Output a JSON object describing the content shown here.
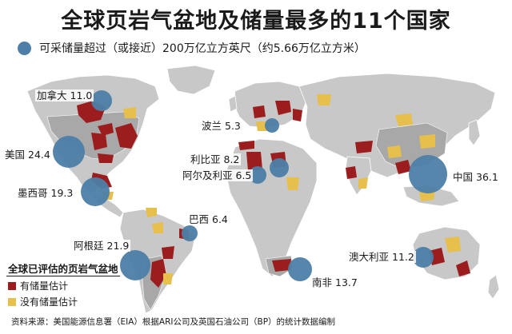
{
  "title": "全球页岩气盆地及储量最多的11个国家",
  "subtitle": "可采储量超过（或接近）200万亿立方英尺（约5.66万亿立方米）",
  "colors": {
    "bubble": "#4d7fa8",
    "with_estimate": "#9b1d1d",
    "no_estimate": "#e6bf4d",
    "land": "#c8c8c8",
    "land_assessed": "#a8a8a8",
    "ocean": "#ffffff"
  },
  "legend": {
    "title": "全球已评估的页岩气盆地",
    "items": [
      {
        "label": "有储量估计",
        "color": "#9b1d1d"
      },
      {
        "label": "没有储量估计",
        "color": "#e6bf4d"
      }
    ]
  },
  "countries": [
    {
      "name": "加拿大",
      "value": "11.0"
    },
    {
      "name": "美国",
      "value": "24.4"
    },
    {
      "name": "墨西哥",
      "value": "19.3"
    },
    {
      "name": "巴西",
      "value": "6.4"
    },
    {
      "name": "阿根廷",
      "value": "21.9"
    },
    {
      "name": "波兰",
      "value": "5.3"
    },
    {
      "name": "利比亚",
      "value": "8.2"
    },
    {
      "name": "阿尔及利亚",
      "value": "6.5"
    },
    {
      "name": "南非",
      "value": "13.7"
    },
    {
      "name": "中国",
      "value": "36.1"
    },
    {
      "name": "澳大利亚",
      "value": "11.2"
    }
  ],
  "source": "资料来源：美国能源信息署（EIA）根据ARI公司及英国石油公司（BP）的统计数据编制"
}
